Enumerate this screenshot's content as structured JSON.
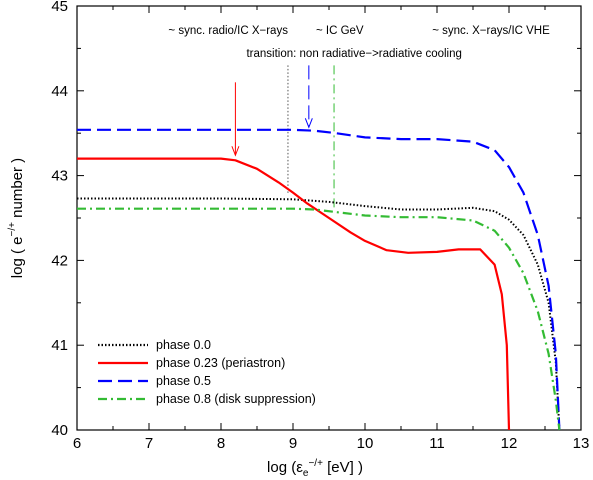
{
  "chart_data": {
    "type": "line",
    "xlabel_main": "log (ε",
    "xlabel_sub": "e",
    "xlabel_sup": "−/+",
    "xlabel_tail": " [eV] )",
    "ylabel_main": "log ( e",
    "ylabel_sup": "−/+",
    "ylabel_tail": " number )",
    "xlim": [
      6,
      13
    ],
    "ylim": [
      40,
      45
    ],
    "xticks": [
      "6",
      "7",
      "8",
      "9",
      "10",
      "11",
      "12",
      "13"
    ],
    "yticks": [
      "40",
      "41",
      "42",
      "43",
      "44",
      "45"
    ],
    "top_labels": [
      {
        "text": "~ sync. radio/IC X−rays",
        "x": 8.1
      },
      {
        "text": "~ IC GeV",
        "x": 9.65
      },
      {
        "text": "~ sync. X−rays/IC VHE",
        "x": 11.75
      }
    ],
    "transition_label": {
      "text": "transition: non radiative−>radiative cooling",
      "x": 9.85
    },
    "series": [
      {
        "name": "phase 0.0",
        "color": "#000000",
        "dash": "dotted",
        "x": [
          6.0,
          7.0,
          8.0,
          9.0,
          9.5,
          10.0,
          10.5,
          11.0,
          11.5,
          11.8,
          12.0,
          12.2,
          12.4,
          12.55,
          12.65,
          12.7
        ],
        "y": [
          42.73,
          42.73,
          42.73,
          42.72,
          42.69,
          42.64,
          42.6,
          42.6,
          42.62,
          42.58,
          42.48,
          42.3,
          41.95,
          41.5,
          40.8,
          40.0
        ]
      },
      {
        "name": "phase 0.23 (periastron)",
        "color": "#ff0000",
        "dash": "solid",
        "x": [
          6.0,
          7.0,
          8.0,
          8.2,
          8.5,
          8.8,
          9.0,
          9.2,
          9.5,
          9.8,
          10.0,
          10.3,
          10.6,
          11.0,
          11.3,
          11.6,
          11.8,
          11.9,
          11.97,
          12.0
        ],
        "y": [
          43.2,
          43.2,
          43.2,
          43.18,
          43.08,
          42.92,
          42.8,
          42.67,
          42.5,
          42.33,
          42.23,
          42.12,
          42.09,
          42.1,
          42.13,
          42.13,
          41.95,
          41.6,
          41.0,
          40.0
        ]
      },
      {
        "name": "phase 0.5",
        "color": "#0000ff",
        "dash": "dashed",
        "x": [
          6.0,
          7.0,
          8.0,
          9.0,
          9.3,
          9.6,
          10.0,
          10.5,
          11.0,
          11.5,
          11.8,
          12.0,
          12.2,
          12.4,
          12.55,
          12.65,
          12.7
        ],
        "y": [
          43.54,
          43.54,
          43.54,
          43.54,
          43.53,
          43.5,
          43.45,
          43.43,
          43.43,
          43.4,
          43.3,
          43.1,
          42.8,
          42.3,
          41.7,
          40.9,
          40.0
        ]
      },
      {
        "name": "phase 0.8 (disk suppression)",
        "color": "#33bb33",
        "dash": "dashdot",
        "x": [
          6.0,
          7.0,
          8.0,
          9.0,
          9.3,
          9.6,
          10.0,
          10.5,
          11.0,
          11.5,
          11.8,
          12.0,
          12.2,
          12.4,
          12.55,
          12.65,
          12.7
        ],
        "y": [
          42.61,
          42.61,
          42.61,
          42.61,
          42.6,
          42.57,
          42.53,
          42.51,
          42.51,
          42.47,
          42.35,
          42.15,
          41.85,
          41.4,
          40.9,
          40.35,
          40.0
        ]
      }
    ],
    "markers": [
      {
        "kind": "arrow",
        "color": "#ff0000",
        "dash": "solid",
        "x": 8.2,
        "y_from": 44.1,
        "y_to": 43.24
      },
      {
        "kind": "line",
        "color": "#555555",
        "dash": "dotted",
        "x": 8.93,
        "y_from": 44.3,
        "y_to": 42.78
      },
      {
        "kind": "arrow",
        "color": "#0000ff",
        "dash": "dashed",
        "x": 9.22,
        "y_from": 44.3,
        "y_to": 43.57
      },
      {
        "kind": "line",
        "color": "#33bb33",
        "dash": "dashdot",
        "x": 9.57,
        "y_from": 44.3,
        "y_to": 42.58
      }
    ],
    "legend": {
      "position": "bottom-left"
    }
  }
}
